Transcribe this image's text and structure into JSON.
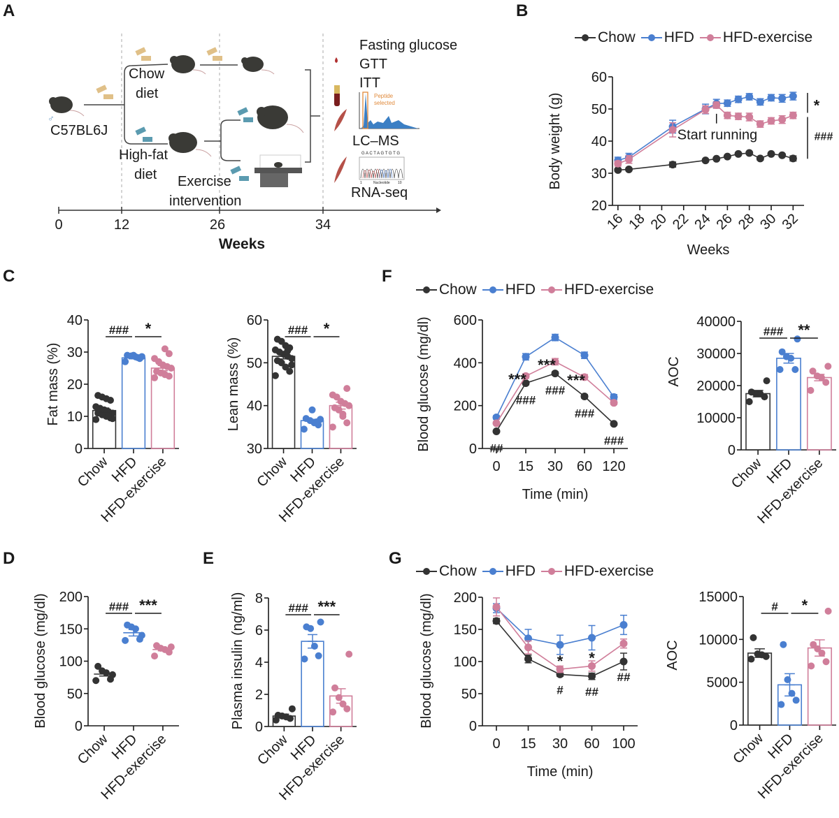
{
  "colors": {
    "chow": "#333333",
    "hfd": "#4a7fd0",
    "hfdex": "#d07e9a",
    "axis": "#1a1a1a",
    "orange": "#e0893a",
    "gridline": "#bbbbbb"
  },
  "groups": [
    "Chow",
    "HFD",
    "HFD-exercise"
  ],
  "panels": {
    "A": {
      "letter": "A",
      "strain_label": "C57BL6J",
      "sex_symbol": "♂",
      "chow_label_1": "Chow",
      "chow_label_2": "diet",
      "hfd_label_1": "High-fat",
      "hfd_label_2": "diet",
      "exercise_label_1": "Exercise",
      "exercise_label_2": "intervention",
      "assays": [
        "Fasting glucose",
        "GTT",
        "ITT"
      ],
      "peptide_label_1": "Peptide",
      "peptide_label_2": "selected",
      "lcms_label": "LC–MS",
      "rnaseq_label": "RNA-seq",
      "seq_letters": "G A C T A G T G T G",
      "nucleotide_label": "Nucleotide",
      "nuc_start": "1",
      "nuc_end": "10",
      "timeline_ticks": [
        "0",
        "12",
        "26",
        "34"
      ],
      "timeline_label": "Weeks"
    },
    "B": {
      "letter": "B"
    },
    "C": {
      "letter": "C"
    },
    "D": {
      "letter": "D"
    },
    "E": {
      "letter": "E"
    },
    "F": {
      "letter": "F"
    },
    "G": {
      "letter": "G"
    }
  },
  "legend": {
    "chow": "Chow",
    "hfd": "HFD",
    "hfdex": "HFD-exercise"
  },
  "chart_data": [
    {
      "id": "B",
      "type": "line",
      "title": "",
      "xlabel": "Weeks",
      "ylabel": "Body weight (g)",
      "xlim": [
        15.5,
        33
      ],
      "ylim": [
        20,
        60
      ],
      "yticks": [
        20,
        30,
        40,
        50,
        60
      ],
      "xticks": [
        16,
        18,
        20,
        22,
        24,
        26,
        28,
        30,
        32
      ],
      "x": [
        16,
        17,
        21,
        24,
        25,
        26,
        27,
        28,
        29,
        30,
        31,
        32
      ],
      "series": [
        {
          "name": "Chow",
          "key": "chow",
          "values": [
            31,
            31.2,
            32.7,
            34,
            34.5,
            35.2,
            36,
            36.3,
            34.6,
            36,
            35.6,
            34.6
          ],
          "err": [
            0.5,
            0.4,
            0.8,
            0.4,
            0.4,
            0.4,
            0.4,
            0.4,
            0.5,
            0.4,
            0.4,
            0.8
          ]
        },
        {
          "name": "HFD",
          "key": "hfd",
          "values": [
            34,
            35,
            44.5,
            50,
            51.7,
            51.8,
            53,
            53.8,
            52.2,
            53.5,
            53.3,
            54
          ],
          "err": [
            1,
            1.2,
            2,
            1.5,
            1.3,
            1,
            1,
            1,
            1,
            1,
            1.2,
            1.2
          ]
        },
        {
          "name": "HFD-exercise",
          "key": "hfdex",
          "values": [
            33,
            34.3,
            43.5,
            49.8,
            51.2,
            48,
            47.7,
            47.5,
            45.3,
            46.3,
            46.7,
            48
          ],
          "err": [
            0.8,
            1.2,
            2.2,
            1.2,
            1,
            1,
            1,
            1.2,
            1,
            1,
            1.2,
            1
          ]
        }
      ],
      "annotations": {
        "start_running": "Start running",
        "sig_hfd_vs_ex": "*",
        "sig_chow_vs_hfd": "###"
      }
    },
    {
      "id": "C1",
      "type": "bar",
      "ylabel": "Fat mass (%)",
      "ylim": [
        0,
        40
      ],
      "yticks": [
        0,
        10,
        20,
        30,
        40
      ],
      "categories": [
        "Chow",
        "HFD",
        "HFD-exercise"
      ],
      "values": [
        11.8,
        28.2,
        25
      ],
      "err": [
        0.8,
        0.3,
        0.8
      ],
      "points": [
        [
          9,
          9.5,
          10,
          10.5,
          11,
          11,
          11.5,
          12,
          12.5,
          13,
          15,
          15.5,
          16,
          16.5,
          9.3,
          10.2
        ],
        [
          27,
          28,
          28.5,
          28.8,
          29,
          28.6,
          28.3,
          29
        ],
        [
          22,
          22.5,
          23,
          23.5,
          24,
          25,
          25.5,
          26,
          27,
          28,
          29.5,
          31
        ]
      ],
      "sig": [
        {
          "from": 0,
          "to": 1,
          "label": "###"
        },
        {
          "from": 1,
          "to": 2,
          "label": "*"
        }
      ]
    },
    {
      "id": "C2",
      "type": "bar",
      "ylabel": "Lean mass (%)",
      "ylim": [
        30,
        60
      ],
      "yticks": [
        30,
        40,
        50,
        60
      ],
      "categories": [
        "Chow",
        "HFD",
        "HFD-exercise"
      ],
      "values": [
        51.5,
        36.5,
        40
      ],
      "err": [
        0.6,
        0.3,
        0.8
      ],
      "points": [
        [
          47,
          48,
          49,
          50,
          50.5,
          51,
          51.5,
          52,
          52.5,
          53,
          53.5,
          54,
          55,
          55.5,
          49.5,
          52.8
        ],
        [
          34.5,
          35.5,
          36,
          36.5,
          37,
          36.8,
          36.2,
          39
        ],
        [
          35,
          36,
          38,
          39,
          39.5,
          40,
          40.5,
          41,
          42,
          42.5,
          44,
          37.5
        ]
      ],
      "sig": [
        {
          "from": 0,
          "to": 1,
          "label": "###"
        },
        {
          "from": 1,
          "to": 2,
          "label": "*"
        }
      ]
    },
    {
      "id": "D",
      "type": "dot",
      "ylabel": "Blood glucose (mg/dl)",
      "ylim": [
        0,
        200
      ],
      "yticks": [
        0,
        50,
        100,
        150,
        200
      ],
      "categories": [
        "Chow",
        "HFD",
        "HFD-exercise"
      ],
      "values": [
        80,
        144,
        118
      ],
      "err": [
        3,
        5,
        2
      ],
      "points": [
        [
          70,
          72,
          82,
          85,
          92,
          79
        ],
        [
          132,
          134,
          150,
          153,
          156,
          140
        ],
        [
          108,
          114,
          118,
          120,
          124,
          122
        ]
      ],
      "sig": [
        {
          "from": 0,
          "to": 1,
          "label": "###"
        },
        {
          "from": 1,
          "to": 2,
          "label": "***"
        }
      ]
    },
    {
      "id": "E",
      "type": "bar",
      "ylabel": "Plasma insulin (ng/ml)",
      "ylim": [
        0,
        8
      ],
      "yticks": [
        0,
        2,
        4,
        6,
        8
      ],
      "categories": [
        "Chow",
        "HFD",
        "HFD-exercise"
      ],
      "values": [
        0.65,
        5.3,
        1.9
      ],
      "err": [
        0.12,
        0.42,
        0.45
      ],
      "points": [
        [
          0.4,
          0.5,
          0.6,
          0.65,
          0.7,
          1.1
        ],
        [
          4.2,
          4.4,
          5.0,
          6.1,
          6.2,
          6.5
        ],
        [
          0.9,
          1.1,
          1.4,
          1.8,
          2.4,
          4.5
        ]
      ],
      "sig": [
        {
          "from": 0,
          "to": 1,
          "label": "###"
        },
        {
          "from": 1,
          "to": 2,
          "label": "***"
        }
      ]
    },
    {
      "id": "F1",
      "type": "line",
      "xlabel": "Time (min)",
      "ylabel": "Blood glucose (mg/dl)",
      "ylim": [
        0,
        600
      ],
      "yticks": [
        0,
        200,
        400,
        600
      ],
      "categories": [
        "0",
        "15",
        "30",
        "60",
        "120"
      ],
      "series": [
        {
          "name": "Chow",
          "key": "chow",
          "values": [
            80,
            305,
            350,
            243,
            115
          ],
          "err": [
            5,
            8,
            8,
            8,
            5
          ]
        },
        {
          "name": "HFD",
          "key": "hfd",
          "values": [
            145,
            428,
            518,
            435,
            240
          ],
          "err": [
            8,
            15,
            15,
            15,
            12
          ]
        },
        {
          "name": "HFD-exercise",
          "key": "hfdex",
          "values": [
            118,
            338,
            405,
            333,
            213
          ],
          "err": [
            6,
            10,
            15,
            12,
            8
          ]
        }
      ],
      "annotations": [
        {
          "x": "0",
          "label": "##",
          "pos": "below-chow"
        },
        {
          "x": "15",
          "label": "***",
          "pos": "above"
        },
        {
          "x": "15",
          "label": "###",
          "pos": "below"
        },
        {
          "x": "30",
          "label": "***",
          "pos": "above"
        },
        {
          "x": "30",
          "label": "###",
          "pos": "below"
        },
        {
          "x": "60",
          "label": "***",
          "pos": "above"
        },
        {
          "x": "60",
          "label": "###",
          "pos": "below"
        },
        {
          "x": "120",
          "label": "###",
          "pos": "below"
        }
      ]
    },
    {
      "id": "F2",
      "type": "bar",
      "ylabel": "AOC",
      "ylim": [
        0,
        40000
      ],
      "yticks": [
        0,
        10000,
        20000,
        30000,
        40000
      ],
      "categories": [
        "Chow",
        "HFD",
        "HFD-exercise"
      ],
      "values": [
        17500,
        28500,
        22500
      ],
      "err": [
        1000,
        1500,
        1000
      ],
      "points": [
        [
          15000,
          16500,
          17500,
          17500,
          18000,
          21500
        ],
        [
          25000,
          25000,
          28500,
          29000,
          30500,
          34500
        ],
        [
          18500,
          21000,
          22500,
          23000,
          24500,
          26000
        ]
      ],
      "sig": [
        {
          "from": 0,
          "to": 1,
          "label": "###"
        },
        {
          "from": 1,
          "to": 2,
          "label": "**"
        }
      ]
    },
    {
      "id": "G1",
      "type": "line",
      "xlabel": "Time (min)",
      "ylabel": "Blood glucose (mg/dl)",
      "ylim": [
        0,
        200
      ],
      "yticks": [
        0,
        50,
        100,
        150,
        200
      ],
      "categories": [
        "0",
        "15",
        "30",
        "60",
        "100"
      ],
      "series": [
        {
          "name": "Chow",
          "key": "chow",
          "values": [
            163,
            104,
            80,
            77,
            100
          ],
          "err": [
            4,
            6,
            3,
            5,
            13
          ]
        },
        {
          "name": "HFD",
          "key": "hfd",
          "values": [
            183,
            136,
            126,
            137,
            157
          ],
          "err": [
            7,
            14,
            15,
            19,
            15
          ]
        },
        {
          "name": "HFD-exercise",
          "key": "hfdex",
          "values": [
            185,
            122,
            88,
            93,
            128
          ],
          "err": [
            14,
            10,
            5,
            8,
            7
          ]
        }
      ],
      "annotations": [
        {
          "x": "30",
          "label": "*",
          "pos": "above"
        },
        {
          "x": "60",
          "label": "*",
          "pos": "above"
        },
        {
          "x": "30",
          "label": "#",
          "pos": "below"
        },
        {
          "x": "60",
          "label": "##",
          "pos": "below"
        },
        {
          "x": "100",
          "label": "##",
          "pos": "below"
        }
      ]
    },
    {
      "id": "G2",
      "type": "bar",
      "ylabel": "AOC",
      "ylim": [
        0,
        15000
      ],
      "yticks": [
        0,
        5000,
        10000,
        15000
      ],
      "categories": [
        "Chow",
        "HFD",
        "HFD-exercise"
      ],
      "values": [
        8400,
        4700,
        9000
      ],
      "err": [
        500,
        1300,
        950
      ],
      "points": [
        [
          7700,
          8000,
          8200,
          8300,
          10200
        ],
        [
          2400,
          2900,
          3700,
          5300,
          9400
        ],
        [
          6900,
          7400,
          8400,
          8900,
          9400,
          13300
        ]
      ],
      "sig": [
        {
          "from": 0,
          "to": 1,
          "label": "#"
        },
        {
          "from": 1,
          "to": 2,
          "label": "*"
        }
      ]
    }
  ]
}
